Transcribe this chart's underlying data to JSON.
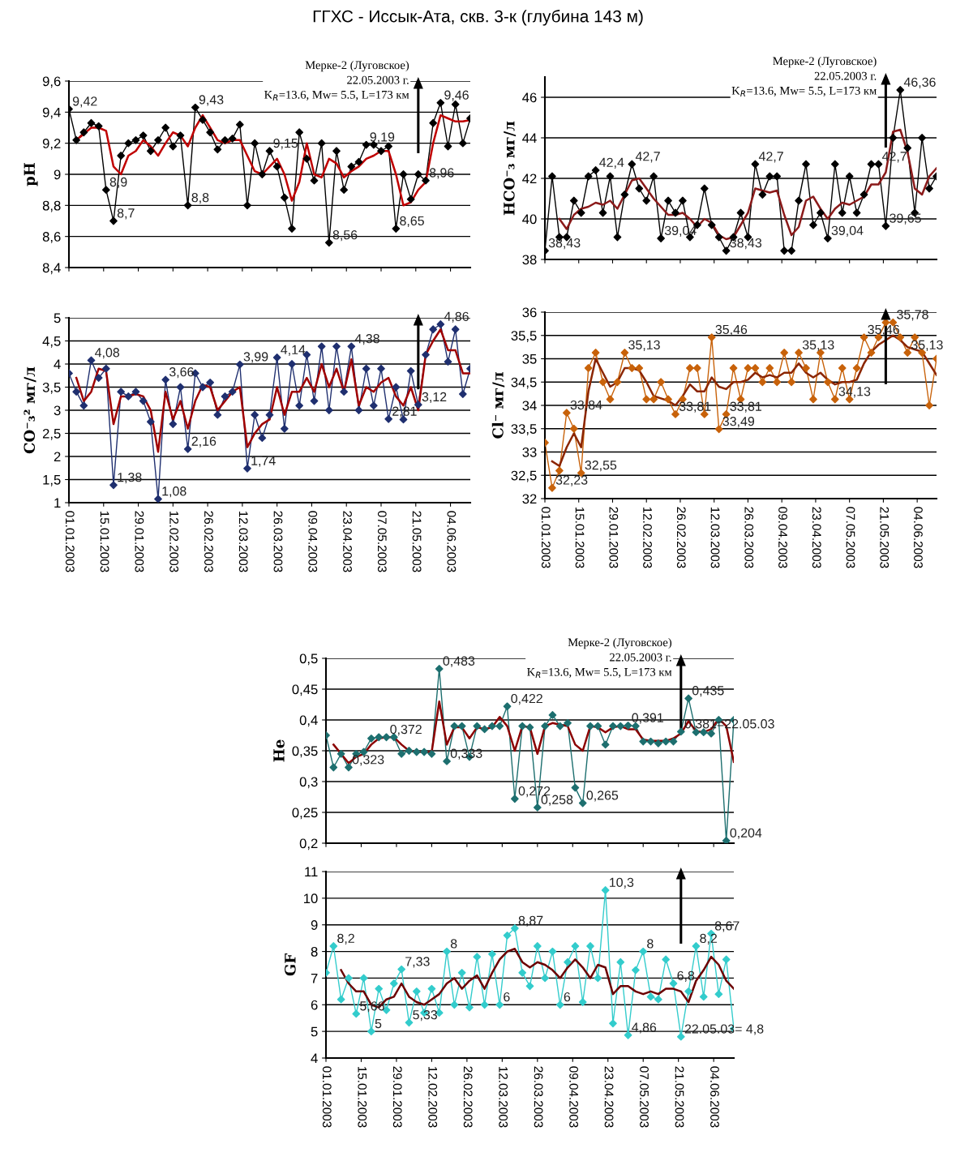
{
  "chart_data": [
    {
      "type": "line",
      "title": "ГГХС - Иссык-Ата, скв. 3-к (глубина 143 м)",
      "ylabel": "pH",
      "tick_labels": "y",
      "grid": "y",
      "legend": false,
      "x": [
        "2003-01-01",
        "2003-01-04",
        "2003-01-07",
        "2003-01-10",
        "2003-01-13",
        "2003-01-16",
        "2003-01-19",
        "2003-01-22",
        "2003-01-25",
        "2003-01-28",
        "2003-01-31",
        "2003-02-03",
        "2003-02-06",
        "2003-02-09",
        "2003-02-12",
        "2003-02-15",
        "2003-02-18",
        "2003-02-21",
        "2003-02-24",
        "2003-02-27",
        "2003-03-02",
        "2003-03-05",
        "2003-03-08",
        "2003-03-11",
        "2003-03-14",
        "2003-03-17",
        "2003-03-20",
        "2003-03-23",
        "2003-03-26",
        "2003-03-29",
        "2003-04-01",
        "2003-04-04",
        "2003-04-07",
        "2003-04-10",
        "2003-04-13",
        "2003-04-16",
        "2003-04-19",
        "2003-04-22",
        "2003-04-25",
        "2003-04-28",
        "2003-05-01",
        "2003-05-04",
        "2003-05-07",
        "2003-05-10",
        "2003-05-13",
        "2003-05-16",
        "2003-05-19",
        "2003-05-22",
        "2003-05-25",
        "2003-05-28",
        "2003-05-31",
        "2003-06-03",
        "2003-06-06",
        "2003-06-09",
        "2003-06-12"
      ],
      "xlim": [
        "2003-01-01",
        "2003-06-12"
      ],
      "xticks": [
        {
          "value": "2003-01-01",
          "label": null
        },
        {
          "value": "2003-01-15",
          "label": null
        },
        {
          "value": "2003-01-29",
          "label": null
        },
        {
          "value": "2003-02-12",
          "label": null
        },
        {
          "value": "2003-02-26",
          "label": null
        },
        {
          "value": "2003-03-12",
          "label": null
        },
        {
          "value": "2003-03-26",
          "label": null
        },
        {
          "value": "2003-04-09",
          "label": null
        },
        {
          "value": "2003-04-23",
          "label": null
        },
        {
          "value": "2003-05-07",
          "label": null
        },
        {
          "value": "2003-05-21",
          "label": null
        },
        {
          "value": "2003-06-04",
          "label": null
        }
      ],
      "ylim": [
        8.4,
        9.6
      ],
      "yticks": [
        {
          "value": 8.4,
          "label": "8,4"
        },
        {
          "value": 8.6,
          "label": "8,6"
        },
        {
          "value": 8.8,
          "label": "8,8"
        },
        9,
        {
          "value": 9.2,
          "label": "9,2"
        },
        {
          "value": 9.4,
          "label": "9,4"
        },
        {
          "value": 9.6,
          "label": "9,6"
        }
      ],
      "series": [
        {
          "color": "#000000",
          "marker": "diamond",
          "values": [
            9.42,
            9.22,
            9.27,
            9.33,
            9.31,
            8.9,
            8.7,
            9.12,
            9.2,
            9.22,
            9.25,
            9.15,
            9.22,
            9.3,
            9.18,
            9.25,
            8.8,
            9.43,
            9.35,
            9.27,
            9.16,
            9.22,
            9.23,
            9.32,
            8.8,
            9.2,
            9.0,
            9.15,
            9.05,
            8.85,
            8.65,
            9.27,
            9.1,
            8.96,
            9.2,
            8.56,
            9.15,
            8.9,
            9.05,
            9.08,
            9.19,
            9.19,
            9.15,
            9.18,
            8.65,
            9.0,
            8.84,
            9.0,
            8.96,
            9.33,
            9.46,
            9.18,
            9.45,
            9.2,
            9.36
          ]
        },
        {
          "color": "#c00000",
          "marker": "none",
          "values": [
            null,
            9.22,
            9.26,
            9.3,
            9.3,
            9.28,
            9.05,
            9.0,
            9.12,
            9.15,
            9.22,
            9.18,
            9.12,
            9.2,
            9.27,
            9.25,
            9.18,
            9.3,
            9.38,
            9.3,
            9.22,
            9.2,
            9.22,
            9.22,
            9.12,
            9.02,
            9.0,
            9.05,
            9.1,
            9.0,
            8.83,
            8.95,
            9.2,
            9.0,
            8.98,
            9.1,
            9.07,
            8.98,
            9.02,
            9.05,
            9.1,
            9.12,
            9.15,
            9.15,
            9.0,
            8.8,
            8.82,
            8.9,
            8.95,
            9.2,
            9.38,
            9.36,
            9.34,
            9.34,
            9.35
          ]
        }
      ],
      "ref_lines": [
        {
          "axis": "x",
          "value": "2003-05-22",
          "label": "Мерке-2 (Луговское)\n22.05.2003 г.\nK$_{R}$=13.6, Mw= 5.5, L=173 км",
          "color": "#000000"
        }
      ],
      "annotations": [
        {
          "text": "9,42",
          "x": "2003-01-01",
          "y": 9.42
        },
        {
          "text": "8,9",
          "x": "2003-01-16",
          "y": 8.9
        },
        {
          "text": "8,7",
          "x": "2003-01-19",
          "y": 8.7
        },
        {
          "text": "8,8",
          "x": "2003-02-18",
          "y": 8.8
        },
        {
          "text": "9,43",
          "x": "2003-02-21",
          "y": 9.43
        },
        {
          "text": "9,15",
          "x": "2003-03-23",
          "y": 9.15
        },
        {
          "text": "8,56",
          "x": "2003-04-16",
          "y": 8.56
        },
        {
          "text": "9,19",
          "x": "2003-05-01",
          "y": 9.19
        },
        {
          "text": "8,65",
          "x": "2003-05-13",
          "y": 8.65
        },
        {
          "text": "8,96",
          "x": "2003-05-25",
          "y": 8.96
        },
        {
          "text": "9,46",
          "x": "2003-05-31",
          "y": 9.46
        }
      ]
    },
    {
      "type": "line",
      "ylabel": "HCO⁻₃ мг/л",
      "tick_labels": "y",
      "grid": "y",
      "legend": false,
      "x": [
        "2003-01-01",
        "2003-01-04",
        "2003-01-07",
        "2003-01-10",
        "2003-01-13",
        "2003-01-16",
        "2003-01-19",
        "2003-01-22",
        "2003-01-25",
        "2003-01-28",
        "2003-01-31",
        "2003-02-03",
        "2003-02-06",
        "2003-02-09",
        "2003-02-12",
        "2003-02-15",
        "2003-02-18",
        "2003-02-21",
        "2003-02-24",
        "2003-02-27",
        "2003-03-02",
        "2003-03-05",
        "2003-03-08",
        "2003-03-11",
        "2003-03-14",
        "2003-03-17",
        "2003-03-20",
        "2003-03-23",
        "2003-03-26",
        "2003-03-29",
        "2003-04-01",
        "2003-04-04",
        "2003-04-07",
        "2003-04-10",
        "2003-04-13",
        "2003-04-16",
        "2003-04-19",
        "2003-04-22",
        "2003-04-25",
        "2003-04-28",
        "2003-05-01",
        "2003-05-04",
        "2003-05-07",
        "2003-05-10",
        "2003-05-13",
        "2003-05-16",
        "2003-05-19",
        "2003-05-22",
        "2003-05-25",
        "2003-05-28",
        "2003-05-31",
        "2003-06-03",
        "2003-06-06",
        "2003-06-09",
        "2003-06-12"
      ],
      "xlim": [
        "2003-01-01",
        "2003-06-12"
      ],
      "xticks": [
        {
          "value": "2003-01-01",
          "label": null
        },
        {
          "value": "2003-01-15",
          "label": null
        },
        {
          "value": "2003-01-29",
          "label": null
        },
        {
          "value": "2003-02-12",
          "label": null
        },
        {
          "value": "2003-02-26",
          "label": null
        },
        {
          "value": "2003-03-12",
          "label": null
        },
        {
          "value": "2003-03-26",
          "label": null
        },
        {
          "value": "2003-04-09",
          "label": null
        },
        {
          "value": "2003-04-23",
          "label": null
        },
        {
          "value": "2003-05-07",
          "label": null
        },
        {
          "value": "2003-05-21",
          "label": null
        },
        {
          "value": "2003-06-04",
          "label": null
        }
      ],
      "ylim": [
        38,
        47
      ],
      "yticks": [
        38,
        40,
        42,
        44,
        46
      ],
      "series": [
        {
          "color": "#000000",
          "marker": "diamond",
          "values": [
            38.43,
            42.1,
            39.1,
            39.1,
            40.9,
            40.3,
            42.1,
            42.4,
            40.3,
            42.1,
            39.1,
            41.2,
            42.7,
            41.5,
            40.9,
            42.1,
            39.04,
            40.9,
            40.3,
            40.9,
            39.1,
            39.7,
            41.5,
            39.7,
            39.1,
            38.43,
            39.1,
            40.3,
            39.1,
            42.7,
            41.2,
            42.1,
            42.1,
            38.43,
            38.43,
            40.9,
            42.7,
            39.7,
            40.3,
            39.04,
            42.7,
            40.3,
            42.1,
            40.3,
            41.2,
            42.7,
            42.7,
            39.65,
            44.0,
            46.36,
            43.5,
            40.3,
            44.0,
            41.5,
            42.1
          ]
        },
        {
          "color": "#8b1a1a",
          "marker": "none",
          "values": [
            null,
            null,
            40.0,
            39.5,
            40.2,
            40.5,
            40.6,
            40.8,
            40.7,
            40.9,
            40.5,
            41.2,
            41.9,
            42.0,
            41.5,
            41.0,
            40.6,
            40.2,
            40.2,
            40.3,
            40.0,
            39.6,
            40.0,
            39.8,
            39.2,
            39.0,
            39.1,
            39.7,
            40.3,
            41.5,
            41.4,
            41.3,
            41.4,
            40.2,
            39.2,
            39.6,
            40.9,
            41.1,
            40.5,
            40.0,
            40.5,
            40.8,
            40.7,
            40.9,
            41.1,
            41.7,
            41.7,
            42.3,
            44.3,
            44.4,
            43.3,
            41.5,
            41.2,
            42.1,
            42.5
          ]
        }
      ],
      "ref_lines": [
        {
          "axis": "x",
          "value": "2003-05-22",
          "label": "Мерке-2 (Луговское)\n22.05.2003 г.\nK$_{R}$=13.6, Mw= 5.5, L=173 км",
          "color": "#000000"
        }
      ],
      "annotations": [
        {
          "text": "38,43",
          "x": "2003-01-01",
          "y": 38.43
        },
        {
          "text": "42,4",
          "x": "2003-01-22",
          "y": 42.4
        },
        {
          "text": "42,7",
          "x": "2003-02-06",
          "y": 42.7
        },
        {
          "text": "39,04",
          "x": "2003-02-18",
          "y": 39.04
        },
        {
          "text": "38,43",
          "x": "2003-03-17",
          "y": 38.43
        },
        {
          "text": "42,7",
          "x": "2003-03-29",
          "y": 42.7
        },
        {
          "text": "39,04",
          "x": "2003-04-28",
          "y": 39.04
        },
        {
          "text": "39,65",
          "x": "2003-05-22",
          "y": 39.65
        },
        {
          "text": "42,7",
          "x": "2003-05-19",
          "y": 42.7
        },
        {
          "text": "46,36",
          "x": "2003-05-28",
          "y": 46.36
        }
      ]
    },
    {
      "type": "line",
      "ylabel": "CO⁻₃² мг/л",
      "grid": "y",
      "legend": false,
      "x": [
        "2003-01-01",
        "2003-01-04",
        "2003-01-07",
        "2003-01-10",
        "2003-01-13",
        "2003-01-16",
        "2003-01-19",
        "2003-01-22",
        "2003-01-25",
        "2003-01-28",
        "2003-01-31",
        "2003-02-03",
        "2003-02-06",
        "2003-02-09",
        "2003-02-12",
        "2003-02-15",
        "2003-02-18",
        "2003-02-21",
        "2003-02-24",
        "2003-02-27",
        "2003-03-02",
        "2003-03-05",
        "2003-03-08",
        "2003-03-11",
        "2003-03-14",
        "2003-03-17",
        "2003-03-20",
        "2003-03-23",
        "2003-03-26",
        "2003-03-29",
        "2003-04-01",
        "2003-04-04",
        "2003-04-07",
        "2003-04-10",
        "2003-04-13",
        "2003-04-16",
        "2003-04-19",
        "2003-04-22",
        "2003-04-25",
        "2003-04-28",
        "2003-05-01",
        "2003-05-04",
        "2003-05-07",
        "2003-05-10",
        "2003-05-13",
        "2003-05-16",
        "2003-05-19",
        "2003-05-22",
        "2003-05-25",
        "2003-05-28",
        "2003-05-31",
        "2003-06-03",
        "2003-06-06",
        "2003-06-09",
        "2003-06-12"
      ],
      "xlim": [
        "2003-01-01",
        "2003-06-12"
      ],
      "xticks": [
        {
          "value": "2003-01-01",
          "label": "01.01.2003"
        },
        {
          "value": "2003-01-15",
          "label": "15.01.2003"
        },
        {
          "value": "2003-01-29",
          "label": "29.01.2003"
        },
        {
          "value": "2003-02-12",
          "label": "12.02.2003"
        },
        {
          "value": "2003-02-26",
          "label": "26.02.2003"
        },
        {
          "value": "2003-03-12",
          "label": "12.03.2003"
        },
        {
          "value": "2003-03-26",
          "label": "26.03.2003"
        },
        {
          "value": "2003-04-09",
          "label": "09.04.2003"
        },
        {
          "value": "2003-04-23",
          "label": "23.04.2003"
        },
        {
          "value": "2003-05-07",
          "label": "07.05.2003"
        },
        {
          "value": "2003-05-21",
          "label": "21.05.2003"
        },
        {
          "value": "2003-06-04",
          "label": "04.06.2003"
        }
      ],
      "ylim": [
        1,
        5
      ],
      "yticks": [
        1,
        {
          "value": 1.5,
          "label": "1,5"
        },
        2,
        {
          "value": 2.5,
          "label": "2,5"
        },
        3,
        {
          "value": 3.5,
          "label": "3,5"
        },
        4,
        {
          "value": 4.5,
          "label": "4,5"
        },
        5
      ],
      "series": [
        {
          "color": "#1f2f6f",
          "marker": "diamond",
          "values": [
            3.8,
            3.4,
            3.1,
            4.08,
            3.7,
            3.9,
            1.38,
            3.4,
            3.3,
            3.4,
            3.2,
            2.75,
            1.08,
            3.66,
            2.7,
            3.5,
            2.16,
            3.8,
            3.5,
            3.6,
            2.9,
            3.3,
            3.4,
            3.99,
            1.74,
            2.9,
            2.4,
            2.9,
            4.14,
            2.6,
            4.0,
            3.1,
            4.2,
            3.2,
            4.38,
            3.0,
            4.38,
            3.4,
            4.38,
            3.0,
            3.9,
            3.1,
            3.9,
            2.81,
            3.5,
            2.8,
            3.85,
            3.12,
            4.2,
            4.75,
            4.86,
            4.05,
            4.75,
            3.35,
            3.9
          ]
        },
        {
          "color": "#a00000",
          "marker": "none",
          "values": [
            null,
            3.7,
            3.2,
            3.4,
            3.9,
            3.85,
            2.7,
            3.3,
            3.3,
            3.35,
            3.3,
            3.0,
            2.1,
            3.4,
            2.8,
            3.2,
            2.6,
            3.2,
            3.55,
            3.5,
            3.0,
            3.2,
            3.4,
            3.5,
            2.2,
            2.5,
            2.7,
            2.8,
            3.5,
            2.9,
            3.4,
            3.4,
            3.7,
            3.4,
            4.0,
            3.5,
            3.9,
            3.4,
            4.1,
            3.1,
            3.5,
            3.4,
            3.6,
            3.7,
            3.3,
            3.1,
            3.5,
            3.0,
            4.2,
            4.5,
            4.75,
            4.3,
            4.3,
            3.8,
            3.8
          ]
        }
      ],
      "ref_lines": [
        {
          "axis": "x",
          "value": "2003-05-22",
          "label": null,
          "color": "#000000"
        }
      ],
      "annotations": [
        {
          "text": "4,08",
          "x": "2003-01-10",
          "y": 4.08
        },
        {
          "text": "1,38",
          "x": "2003-01-19",
          "y": 1.38
        },
        {
          "text": "1,08",
          "x": "2003-02-06",
          "y": 1.08
        },
        {
          "text": "3,66",
          "x": "2003-02-09",
          "y": 3.66
        },
        {
          "text": "2,16",
          "x": "2003-02-18",
          "y": 2.16
        },
        {
          "text": "3,99",
          "x": "2003-03-11",
          "y": 3.99
        },
        {
          "text": "1,74",
          "x": "2003-03-14",
          "y": 1.74
        },
        {
          "text": "4,14",
          "x": "2003-03-26",
          "y": 4.14
        },
        {
          "text": "4,38",
          "x": "2003-04-25",
          "y": 4.38
        },
        {
          "text": "2,81",
          "x": "2003-05-10",
          "y": 2.81
        },
        {
          "text": "3,12",
          "x": "2003-05-22",
          "y": 3.12
        },
        {
          "text": "4,86",
          "x": "2003-05-31",
          "y": 4.86
        }
      ]
    },
    {
      "type": "line",
      "ylabel": "Cl⁻ мг/л",
      "grid": "y",
      "legend": false,
      "x": [
        "2003-01-01",
        "2003-01-04",
        "2003-01-07",
        "2003-01-10",
        "2003-01-13",
        "2003-01-16",
        "2003-01-19",
        "2003-01-22",
        "2003-01-25",
        "2003-01-28",
        "2003-01-31",
        "2003-02-03",
        "2003-02-06",
        "2003-02-09",
        "2003-02-12",
        "2003-02-15",
        "2003-02-18",
        "2003-02-21",
        "2003-02-24",
        "2003-02-27",
        "2003-03-02",
        "2003-03-05",
        "2003-03-08",
        "2003-03-11",
        "2003-03-14",
        "2003-03-17",
        "2003-03-20",
        "2003-03-23",
        "2003-03-26",
        "2003-03-29",
        "2003-04-01",
        "2003-04-04",
        "2003-04-07",
        "2003-04-10",
        "2003-04-13",
        "2003-04-16",
        "2003-04-19",
        "2003-04-22",
        "2003-04-25",
        "2003-04-28",
        "2003-05-01",
        "2003-05-04",
        "2003-05-07",
        "2003-05-10",
        "2003-05-13",
        "2003-05-16",
        "2003-05-19",
        "2003-05-22",
        "2003-05-25",
        "2003-05-28",
        "2003-05-31",
        "2003-06-03",
        "2003-06-06",
        "2003-06-09",
        "2003-06-12"
      ],
      "xlim": [
        "2003-01-01",
        "2003-06-12"
      ],
      "xticks": [
        {
          "value": "2003-01-01",
          "label": "01.01.2003"
        },
        {
          "value": "2003-01-15",
          "label": "15.01.2003"
        },
        {
          "value": "2003-01-29",
          "label": "29.01.2003"
        },
        {
          "value": "2003-02-12",
          "label": "12.02.2003"
        },
        {
          "value": "2003-02-26",
          "label": "26.02.2003"
        },
        {
          "value": "2003-03-12",
          "label": "12.03.2003"
        },
        {
          "value": "2003-03-26",
          "label": "26.03.2003"
        },
        {
          "value": "2003-04-09",
          "label": "09.04.2003"
        },
        {
          "value": "2003-04-23",
          "label": "23.04.2003"
        },
        {
          "value": "2003-05-07",
          "label": "07.05.2003"
        },
        {
          "value": "2003-05-21",
          "label": "21.05.2003"
        },
        {
          "value": "2003-06-04",
          "label": "04.06.2003"
        }
      ],
      "ylim": [
        32,
        36
      ],
      "yticks": [
        32,
        {
          "value": 32.5,
          "label": "32,5"
        },
        33,
        {
          "value": 33.5,
          "label": "33,5"
        },
        34,
        {
          "value": 34.5,
          "label": "34,5"
        },
        35,
        {
          "value": 35.5,
          "label": "35,5"
        },
        36
      ],
      "series": [
        {
          "color": "#c8620a",
          "marker": "diamond",
          "values": [
            33.2,
            32.23,
            32.6,
            33.84,
            33.5,
            32.55,
            34.8,
            35.13,
            34.5,
            34.13,
            34.5,
            35.13,
            34.8,
            34.8,
            34.13,
            34.13,
            34.5,
            34.13,
            33.81,
            34.13,
            34.8,
            34.8,
            33.81,
            35.46,
            33.49,
            33.81,
            34.8,
            34.13,
            34.8,
            34.8,
            34.5,
            34.8,
            34.5,
            35.13,
            34.5,
            35.13,
            34.8,
            34.13,
            35.13,
            34.5,
            34.13,
            34.8,
            34.13,
            34.8,
            35.46,
            35.13,
            35.46,
            35.78,
            35.78,
            35.46,
            35.13,
            35.46,
            35.13,
            34.0,
            35.0
          ]
        },
        {
          "color": "#8b2500",
          "marker": "none",
          "values": [
            null,
            32.8,
            32.7,
            33.1,
            33.4,
            33.1,
            34.3,
            35.0,
            34.7,
            34.4,
            34.5,
            34.8,
            34.8,
            34.75,
            34.5,
            34.2,
            34.15,
            34.1,
            34.0,
            34.2,
            34.45,
            34.3,
            34.3,
            34.6,
            34.4,
            34.35,
            34.5,
            34.5,
            34.55,
            34.7,
            34.6,
            34.65,
            34.6,
            34.7,
            34.7,
            34.9,
            34.7,
            34.6,
            34.7,
            34.55,
            34.45,
            34.5,
            34.5,
            34.55,
            34.9,
            35.15,
            35.3,
            35.4,
            35.5,
            35.4,
            35.25,
            35.2,
            35.15,
            34.9,
            34.65
          ]
        }
      ],
      "ref_lines": [
        {
          "axis": "x",
          "value": "2003-05-22",
          "label": null,
          "color": "#000000"
        }
      ],
      "annotations": [
        {
          "text": "32,23",
          "x": "2003-01-04",
          "y": 32.23
        },
        {
          "text": "33,84",
          "x": "2003-01-10",
          "y": 33.84
        },
        {
          "text": "32,55",
          "x": "2003-01-16",
          "y": 32.55
        },
        {
          "text": "35,13",
          "x": "2003-02-03",
          "y": 35.13
        },
        {
          "text": "33,81",
          "x": "2003-02-24",
          "y": 33.81
        },
        {
          "text": "35,46",
          "x": "2003-03-11",
          "y": 35.46
        },
        {
          "text": "33,49",
          "x": "2003-03-14",
          "y": 33.49
        },
        {
          "text": "33,81",
          "x": "2003-03-17",
          "y": 33.81
        },
        {
          "text": "35,13",
          "x": "2003-04-16",
          "y": 35.13
        },
        {
          "text": "34,13",
          "x": "2003-05-01",
          "y": 34.13
        },
        {
          "text": "35,46",
          "x": "2003-05-13",
          "y": 35.46
        },
        {
          "text": "35,13",
          "x": "2003-05-31",
          "y": 35.13
        },
        {
          "text": "35,78",
          "x": "2003-05-25",
          "y": 35.78
        }
      ]
    },
    {
      "type": "line",
      "ylabel": "He",
      "tick_labels": "y",
      "grid": "y",
      "legend": false,
      "x": [
        "2003-01-01",
        "2003-01-04",
        "2003-01-07",
        "2003-01-10",
        "2003-01-13",
        "2003-01-16",
        "2003-01-19",
        "2003-01-22",
        "2003-01-25",
        "2003-01-28",
        "2003-01-31",
        "2003-02-03",
        "2003-02-06",
        "2003-02-09",
        "2003-02-12",
        "2003-02-15",
        "2003-02-18",
        "2003-02-21",
        "2003-02-24",
        "2003-02-27",
        "2003-03-02",
        "2003-03-05",
        "2003-03-08",
        "2003-03-11",
        "2003-03-14",
        "2003-03-17",
        "2003-03-20",
        "2003-03-23",
        "2003-03-26",
        "2003-03-29",
        "2003-04-01",
        "2003-04-04",
        "2003-04-07",
        "2003-04-10",
        "2003-04-13",
        "2003-04-16",
        "2003-04-19",
        "2003-04-22",
        "2003-04-25",
        "2003-04-28",
        "2003-05-01",
        "2003-05-04",
        "2003-05-07",
        "2003-05-10",
        "2003-05-13",
        "2003-05-16",
        "2003-05-19",
        "2003-05-22",
        "2003-05-25",
        "2003-05-28",
        "2003-05-31",
        "2003-06-03",
        "2003-06-06",
        "2003-06-09",
        "2003-06-12"
      ],
      "xlim": [
        "2003-01-01",
        "2003-06-12"
      ],
      "xticks": [
        {
          "value": "2003-01-01",
          "label": null
        },
        {
          "value": "2003-01-15",
          "label": null
        },
        {
          "value": "2003-01-29",
          "label": null
        },
        {
          "value": "2003-02-12",
          "label": null
        },
        {
          "value": "2003-02-26",
          "label": null
        },
        {
          "value": "2003-03-12",
          "label": null
        },
        {
          "value": "2003-03-26",
          "label": null
        },
        {
          "value": "2003-04-09",
          "label": null
        },
        {
          "value": "2003-04-23",
          "label": null
        },
        {
          "value": "2003-05-07",
          "label": null
        },
        {
          "value": "2003-05-21",
          "label": null
        },
        {
          "value": "2003-06-04",
          "label": null
        }
      ],
      "ylim": [
        0.2,
        0.5
      ],
      "yticks": [
        {
          "value": 0.2,
          "label": "0,2"
        },
        {
          "value": 0.25,
          "label": "0,25"
        },
        {
          "value": 0.3,
          "label": "0,3"
        },
        {
          "value": 0.35,
          "label": "0,35"
        },
        {
          "value": 0.4,
          "label": "0,4"
        },
        {
          "value": 0.45,
          "label": "0,45"
        },
        {
          "value": 0.5,
          "label": "0,5"
        }
      ],
      "series": [
        {
          "color": "#1d6f6f",
          "marker": "diamond",
          "values": [
            0.375,
            0.323,
            0.345,
            0.323,
            0.345,
            0.348,
            0.37,
            0.372,
            0.372,
            0.372,
            0.345,
            0.35,
            0.348,
            0.348,
            0.345,
            0.483,
            0.333,
            0.39,
            0.39,
            0.34,
            0.39,
            0.385,
            0.39,
            0.39,
            0.422,
            0.272,
            0.39,
            0.388,
            0.258,
            0.39,
            0.408,
            0.39,
            0.395,
            0.29,
            0.265,
            0.39,
            0.39,
            0.36,
            0.39,
            0.39,
            0.391,
            0.39,
            0.365,
            0.365,
            0.362,
            0.365,
            0.365,
            0.381,
            0.435,
            0.38,
            0.38,
            0.378,
            0.4,
            0.204,
            0.4
          ]
        },
        {
          "color": "#8b0000",
          "marker": "none",
          "values": [
            null,
            0.36,
            0.345,
            0.33,
            0.34,
            0.345,
            0.36,
            0.37,
            0.372,
            0.372,
            0.36,
            0.35,
            0.348,
            0.348,
            0.348,
            0.43,
            0.36,
            0.388,
            0.388,
            0.37,
            0.388,
            0.385,
            0.388,
            0.405,
            0.39,
            0.35,
            0.39,
            0.388,
            0.345,
            0.39,
            0.395,
            0.392,
            0.39,
            0.36,
            0.35,
            0.39,
            0.388,
            0.38,
            0.388,
            0.39,
            0.385,
            0.385,
            0.368,
            0.366,
            0.366,
            0.366,
            0.37,
            0.378,
            0.398,
            0.382,
            0.38,
            0.385,
            0.402,
            0.39,
            0.332
          ]
        }
      ],
      "ref_lines": [
        {
          "axis": "x",
          "value": "2003-05-22",
          "label": "Мерке-2 (Луговское)\n22.05.2003 г.\nK$_{R}$=13.6, Mw= 5.5, L=173 км",
          "color": "#000000"
        }
      ],
      "annotations": [
        {
          "text": "0,323",
          "x": "2003-01-10",
          "y": 0.323
        },
        {
          "text": "0,372",
          "x": "2003-01-25",
          "y": 0.372
        },
        {
          "text": "0,483",
          "x": "2003-02-15",
          "y": 0.483
        },
        {
          "text": "0,333",
          "x": "2003-02-18",
          "y": 0.333
        },
        {
          "text": "0,422",
          "x": "2003-03-14",
          "y": 0.422
        },
        {
          "text": "0,272",
          "x": "2003-03-17",
          "y": 0.272
        },
        {
          "text": "0,258",
          "x": "2003-03-26",
          "y": 0.258
        },
        {
          "text": "0,265",
          "x": "2003-04-13",
          "y": 0.265
        },
        {
          "text": "0,391",
          "x": "2003-05-01",
          "y": 0.391
        },
        {
          "text": "0,381=22.05.03",
          "x": "2003-05-22",
          "y": 0.381
        },
        {
          "text": "0,435",
          "x": "2003-05-25",
          "y": 0.435
        },
        {
          "text": "0,204",
          "x": "2003-06-09",
          "y": 0.204
        }
      ]
    },
    {
      "type": "line",
      "ylabel": "GF",
      "grid": "y",
      "legend": false,
      "x": [
        "2003-01-01",
        "2003-01-04",
        "2003-01-07",
        "2003-01-10",
        "2003-01-13",
        "2003-01-16",
        "2003-01-19",
        "2003-01-22",
        "2003-01-25",
        "2003-01-28",
        "2003-01-31",
        "2003-02-03",
        "2003-02-06",
        "2003-02-09",
        "2003-02-12",
        "2003-02-15",
        "2003-02-18",
        "2003-02-21",
        "2003-02-24",
        "2003-02-27",
        "2003-03-02",
        "2003-03-05",
        "2003-03-08",
        "2003-03-11",
        "2003-03-14",
        "2003-03-17",
        "2003-03-20",
        "2003-03-23",
        "2003-03-26",
        "2003-03-29",
        "2003-04-01",
        "2003-04-04",
        "2003-04-07",
        "2003-04-10",
        "2003-04-13",
        "2003-04-16",
        "2003-04-19",
        "2003-04-22",
        "2003-04-25",
        "2003-04-28",
        "2003-05-01",
        "2003-05-04",
        "2003-05-07",
        "2003-05-10",
        "2003-05-13",
        "2003-05-16",
        "2003-05-19",
        "2003-05-22",
        "2003-05-25",
        "2003-05-28",
        "2003-05-31",
        "2003-06-03",
        "2003-06-06",
        "2003-06-09",
        "2003-06-12"
      ],
      "xlim": [
        "2003-01-01",
        "2003-06-12"
      ],
      "xticks": [
        {
          "value": "2003-01-01",
          "label": "01.01.2003"
        },
        {
          "value": "2003-01-15",
          "label": "15.01.2003"
        },
        {
          "value": "2003-01-29",
          "label": "29.01.2003"
        },
        {
          "value": "2003-02-12",
          "label": "12.02.2003"
        },
        {
          "value": "2003-02-26",
          "label": "26.02.2003"
        },
        {
          "value": "2003-03-12",
          "label": "12.03.2003"
        },
        {
          "value": "2003-03-26",
          "label": "26.03.2003"
        },
        {
          "value": "2003-04-09",
          "label": "09.04.2003"
        },
        {
          "value": "2003-04-23",
          "label": "23.04.2003"
        },
        {
          "value": "2003-05-07",
          "label": "07.05.2003"
        },
        {
          "value": "2003-05-21",
          "label": "21.05.2003"
        },
        {
          "value": "2003-06-04",
          "label": "04.06.2003"
        }
      ],
      "ylim": [
        4,
        11
      ],
      "yticks": [
        4,
        5,
        6,
        7,
        8,
        9,
        10,
        11
      ],
      "series": [
        {
          "color": "#33cccc",
          "marker": "diamond",
          "values": [
            7.2,
            8.2,
            6.2,
            7.0,
            5.66,
            7.0,
            5.0,
            6.6,
            5.8,
            6.8,
            7.33,
            5.33,
            6.5,
            5.7,
            6.6,
            5.7,
            8.0,
            6.0,
            7.2,
            5.9,
            7.8,
            6.0,
            7.9,
            6.0,
            8.6,
            8.87,
            7.2,
            6.7,
            8.2,
            7.0,
            8.0,
            6.0,
            7.6,
            8.2,
            6.1,
            8.2,
            7.0,
            10.3,
            5.3,
            7.6,
            4.86,
            7.3,
            8.0,
            6.3,
            6.2,
            7.7,
            6.8,
            4.8,
            6.5,
            8.2,
            6.3,
            8.67,
            6.4,
            7.7,
            5.1
          ]
        },
        {
          "color": "#6b0000",
          "marker": "none",
          "values": [
            null,
            null,
            7.3,
            6.8,
            6.5,
            6.5,
            6.0,
            5.9,
            6.2,
            6.3,
            6.8,
            6.3,
            6.1,
            6.0,
            6.2,
            6.4,
            6.8,
            7.0,
            6.6,
            6.9,
            7.1,
            6.6,
            7.2,
            7.7,
            8.0,
            8.1,
            7.6,
            7.4,
            7.6,
            7.5,
            7.3,
            7.0,
            7.4,
            7.7,
            7.4,
            7.0,
            7.5,
            7.4,
            6.4,
            6.7,
            6.7,
            6.5,
            6.4,
            6.5,
            6.4,
            6.6,
            6.6,
            6.5,
            6.1,
            6.9,
            7.3,
            7.8,
            7.5,
            6.9,
            6.6
          ]
        }
      ],
      "ref_lines": [
        {
          "axis": "x",
          "value": "2003-05-22",
          "label": null,
          "color": "#000000"
        }
      ],
      "annotations": [
        {
          "text": "8,2",
          "x": "2003-01-04",
          "y": 8.2
        },
        {
          "text": "5,66",
          "x": "2003-01-13",
          "y": 5.66
        },
        {
          "text": "5",
          "x": "2003-01-19",
          "y": 5.0
        },
        {
          "text": "7,33",
          "x": "2003-01-31",
          "y": 7.33
        },
        {
          "text": "5,33",
          "x": "2003-02-03",
          "y": 5.33
        },
        {
          "text": "8",
          "x": "2003-02-18",
          "y": 8.0
        },
        {
          "text": "6",
          "x": "2003-03-11",
          "y": 6.0
        },
        {
          "text": "8,87",
          "x": "2003-03-17",
          "y": 8.87
        },
        {
          "text": "6",
          "x": "2003-04-04",
          "y": 6.0
        },
        {
          "text": "10,3",
          "x": "2003-04-22",
          "y": 10.3
        },
        {
          "text": "4,86",
          "x": "2003-05-01",
          "y": 4.86
        },
        {
          "text": "8",
          "x": "2003-05-07",
          "y": 8.0
        },
        {
          "text": "6,8",
          "x": "2003-05-19",
          "y": 6.8
        },
        {
          "text": "22.05.03= 4,8",
          "x": "2003-05-22",
          "y": 4.8
        },
        {
          "text": "8,2",
          "x": "2003-05-28",
          "y": 8.2
        },
        {
          "text": "8,67",
          "x": "2003-06-03",
          "y": 8.67
        }
      ]
    }
  ]
}
